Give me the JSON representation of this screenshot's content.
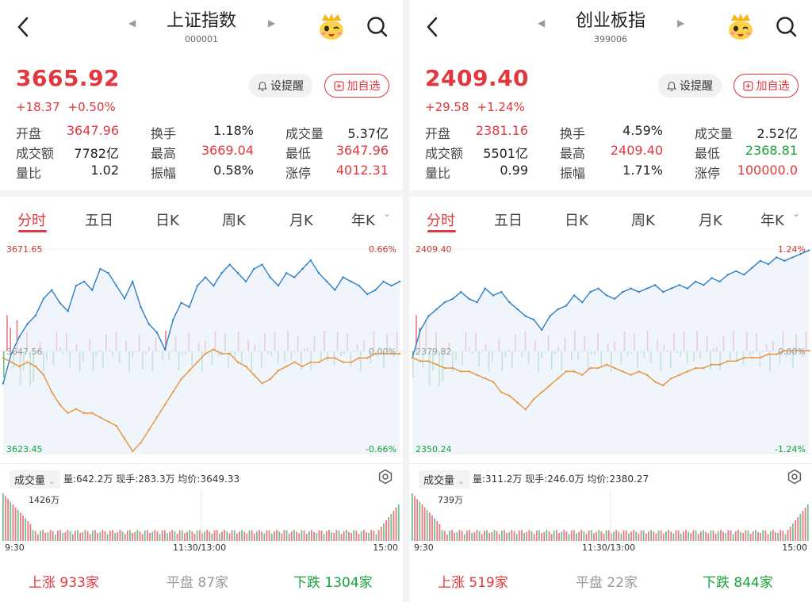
{
  "panels": [
    {
      "title": "上证指数",
      "code": "000001",
      "price": "3665.92",
      "change": "+18.37",
      "change_pct": "+0.50%",
      "alert_label": "设提醒",
      "add_label": "加自选",
      "stats": [
        [
          [
            "开盘",
            "3647.96",
            "red"
          ],
          [
            "换手",
            "1.18%",
            "blk"
          ],
          [
            "成交量",
            "5.37亿",
            "blk"
          ]
        ],
        [
          [
            "成交额",
            "7782亿",
            "blk"
          ],
          [
            "最高",
            "3669.04",
            "red"
          ],
          [
            "最低",
            "3647.96",
            "red"
          ]
        ],
        [
          [
            "量比",
            "1.02",
            "blk"
          ],
          [
            "振幅",
            "0.58%",
            "blk"
          ],
          [
            "涨停",
            "4012.31",
            "red"
          ]
        ]
      ],
      "tabs": [
        "分时",
        "五日",
        "日K",
        "周K",
        "月K",
        "年K"
      ],
      "chart_labels": {
        "top_price": "3671.65",
        "bottom_price": "3623.45",
        "top_pct": "0.66%",
        "bottom_pct": "-0.66%",
        "mid_price": "3647.56",
        "mid_pct": "0.00%"
      },
      "vol_tag": "成交量",
      "vol_text": "量:642.2万  现手:283.3万  均价:3649.33",
      "vol_max": "1426万",
      "times": [
        "9:30",
        "11:30/13:00",
        "15:00"
      ],
      "up_label": "上涨",
      "up_count": "933家",
      "flat_label": "平盘",
      "flat_count": "87家",
      "down_label": "下跌",
      "down_count": "1304家",
      "chart_data": {
        "type": "line",
        "ylim": [
          3623.45,
          3671.65
        ],
        "price_line": [
          3640,
          3647,
          3651,
          3654,
          3656,
          3660,
          3662,
          3659,
          3657,
          3663,
          3664,
          3662,
          3667,
          3666,
          3663,
          3660,
          3664,
          3658,
          3654,
          3652,
          3648,
          3655,
          3659,
          3658,
          3663,
          3665,
          3663,
          3666,
          3668,
          3666,
          3664,
          3667,
          3668,
          3665,
          3663,
          3666,
          3665,
          3667,
          3669,
          3666,
          3664,
          3662,
          3665,
          3664,
          3663,
          3661,
          3662,
          3664,
          3663,
          3664
        ],
        "avg_line": [
          3646,
          3645,
          3644,
          3645,
          3644,
          3642,
          3638,
          3635,
          3633,
          3634,
          3633,
          3633,
          3632,
          3631,
          3630,
          3627,
          3624,
          3626,
          3629,
          3632,
          3635,
          3638,
          3641,
          3643,
          3645,
          3647,
          3648,
          3647,
          3647,
          3645,
          3644,
          3642,
          3640,
          3641,
          3643,
          3644,
          3645,
          3644,
          3645,
          3645,
          3646,
          3646,
          3645,
          3645,
          3646,
          3646,
          3647,
          3647,
          3647,
          3647
        ],
        "vol_series_name": "成交量"
      }
    },
    {
      "title": "创业板指",
      "code": "399006",
      "price": "2409.40",
      "change": "+29.58",
      "change_pct": "+1.24%",
      "alert_label": "设提醒",
      "add_label": "加自选",
      "stats": [
        [
          [
            "开盘",
            "2381.16",
            "red"
          ],
          [
            "换手",
            "4.59%",
            "blk"
          ],
          [
            "成交量",
            "2.52亿",
            "blk"
          ]
        ],
        [
          [
            "成交额",
            "5501亿",
            "blk"
          ],
          [
            "最高",
            "2409.40",
            "red"
          ],
          [
            "最低",
            "2368.81",
            "green"
          ]
        ],
        [
          [
            "量比",
            "0.99",
            "blk"
          ],
          [
            "振幅",
            "1.71%",
            "blk"
          ],
          [
            "涨停",
            "100000.0",
            "red"
          ]
        ]
      ],
      "tabs": [
        "分时",
        "五日",
        "日K",
        "周K",
        "月K",
        "年K"
      ],
      "chart_labels": {
        "top_price": "2409.40",
        "bottom_price": "2350.24",
        "top_pct": "1.24%",
        "bottom_pct": "-1.24%",
        "mid_price": "2379.82",
        "mid_pct": "0.00%"
      },
      "vol_tag": "成交量",
      "vol_text": "量:311.2万  现手:246.0万  均价:2380.27",
      "vol_max": "739万",
      "times": [
        "9:30",
        "11:30/13:00",
        "15:00"
      ],
      "up_label": "上涨",
      "up_count": "519家",
      "flat_label": "平盘",
      "flat_count": "22家",
      "down_label": "下跌",
      "down_count": "844家",
      "chart_data": {
        "type": "line",
        "ylim": [
          2350.24,
          2409.4
        ],
        "price_line": [
          2378,
          2386,
          2390,
          2392,
          2394,
          2395,
          2397,
          2395,
          2394,
          2398,
          2396,
          2397,
          2394,
          2392,
          2390,
          2389,
          2386,
          2390,
          2392,
          2393,
          2396,
          2394,
          2397,
          2398,
          2396,
          2395,
          2397,
          2398,
          2397,
          2398,
          2399,
          2397,
          2398,
          2399,
          2398,
          2400,
          2399,
          2401,
          2400,
          2402,
          2403,
          2402,
          2404,
          2406,
          2405,
          2407,
          2406,
          2407,
          2408,
          2409
        ],
        "avg_line": [
          2378,
          2377,
          2377,
          2376,
          2375,
          2375,
          2374,
          2374,
          2373,
          2372,
          2371,
          2368,
          2367,
          2365,
          2363,
          2366,
          2368,
          2370,
          2372,
          2374,
          2374,
          2373,
          2375,
          2375,
          2376,
          2375,
          2374,
          2373,
          2374,
          2373,
          2371,
          2370,
          2372,
          2373,
          2374,
          2375,
          2375,
          2376,
          2376,
          2377,
          2377,
          2378,
          2378,
          2378,
          2379,
          2379,
          2380,
          2380,
          2380,
          2380
        ],
        "vol_series_name": "成交量"
      }
    }
  ]
}
